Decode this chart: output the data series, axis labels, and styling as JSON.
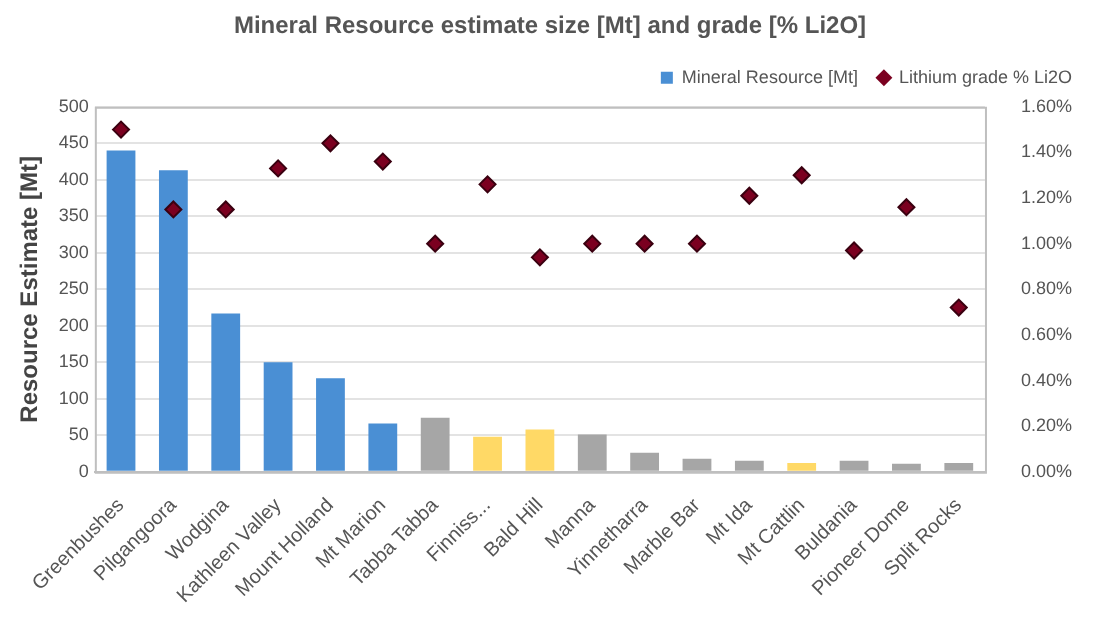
{
  "chart_data": {
    "type": "bar",
    "title": "Mineral Resource estimate size [Mt] and grade [% Li2O]",
    "ylabel": "Resource Estimate [Mt]",
    "categories": [
      "Greenbushes",
      "Pilgangoora",
      "Wodgina",
      "Kathleen Valley",
      "Mount Holland",
      "Mt Marion",
      "Tabba Tabba",
      "Finniss...",
      "Bald Hill",
      "Manna",
      "Yinnetharra",
      "Marble Bar",
      "Mt Ida",
      "Mt Cattlin",
      "Buldania",
      "Pioneer Dome",
      "Split Rocks"
    ],
    "series": [
      {
        "name": "Mineral Resource [Mt]",
        "color": "#4a8fd4",
        "colors": [
          "#4a8fd4",
          "#4a8fd4",
          "#4a8fd4",
          "#4a8fd4",
          "#4a8fd4",
          "#4a8fd4",
          "#a6a6a6",
          "#ffd966",
          "#ffd966",
          "#a6a6a6",
          "#a6a6a6",
          "#a6a6a6",
          "#a6a6a6",
          "#ffd966",
          "#a6a6a6",
          "#a6a6a6",
          "#a6a6a6"
        ],
        "values": [
          440,
          413,
          217,
          150,
          128,
          66,
          74,
          48,
          58,
          51,
          26,
          18,
          15,
          12,
          15,
          11,
          12
        ]
      },
      {
        "name": "Lithium grade % Li2O",
        "type": "scatter",
        "axis": "y2",
        "marker": "diamond",
        "color": "#7b0020",
        "values": [
          1.5,
          1.15,
          1.15,
          1.33,
          1.44,
          1.36,
          1.0,
          1.26,
          0.94,
          1.0,
          1.0,
          1.0,
          1.21,
          1.3,
          0.97,
          1.16,
          0.72
        ]
      }
    ],
    "ylim": [
      0,
      500
    ],
    "yticks": [
      0,
      50,
      100,
      150,
      200,
      250,
      300,
      350,
      400,
      450,
      500
    ],
    "y2lim": [
      0,
      1.6
    ],
    "y2ticks": [
      {
        "value": 0,
        "label": "0.00%"
      },
      {
        "value": 0.2,
        "label": "0.20%"
      },
      {
        "value": 0.4,
        "label": "0.40%"
      },
      {
        "value": 0.6,
        "label": "0.60%"
      },
      {
        "value": 0.8,
        "label": "0.80%"
      },
      {
        "value": 1.0,
        "label": "1.00%"
      },
      {
        "value": 1.2,
        "label": "1.20%"
      },
      {
        "value": 1.4,
        "label": "1.40%"
      },
      {
        "value": 1.6,
        "label": "1.60%"
      }
    ],
    "grid": "y",
    "legend": "top right"
  }
}
